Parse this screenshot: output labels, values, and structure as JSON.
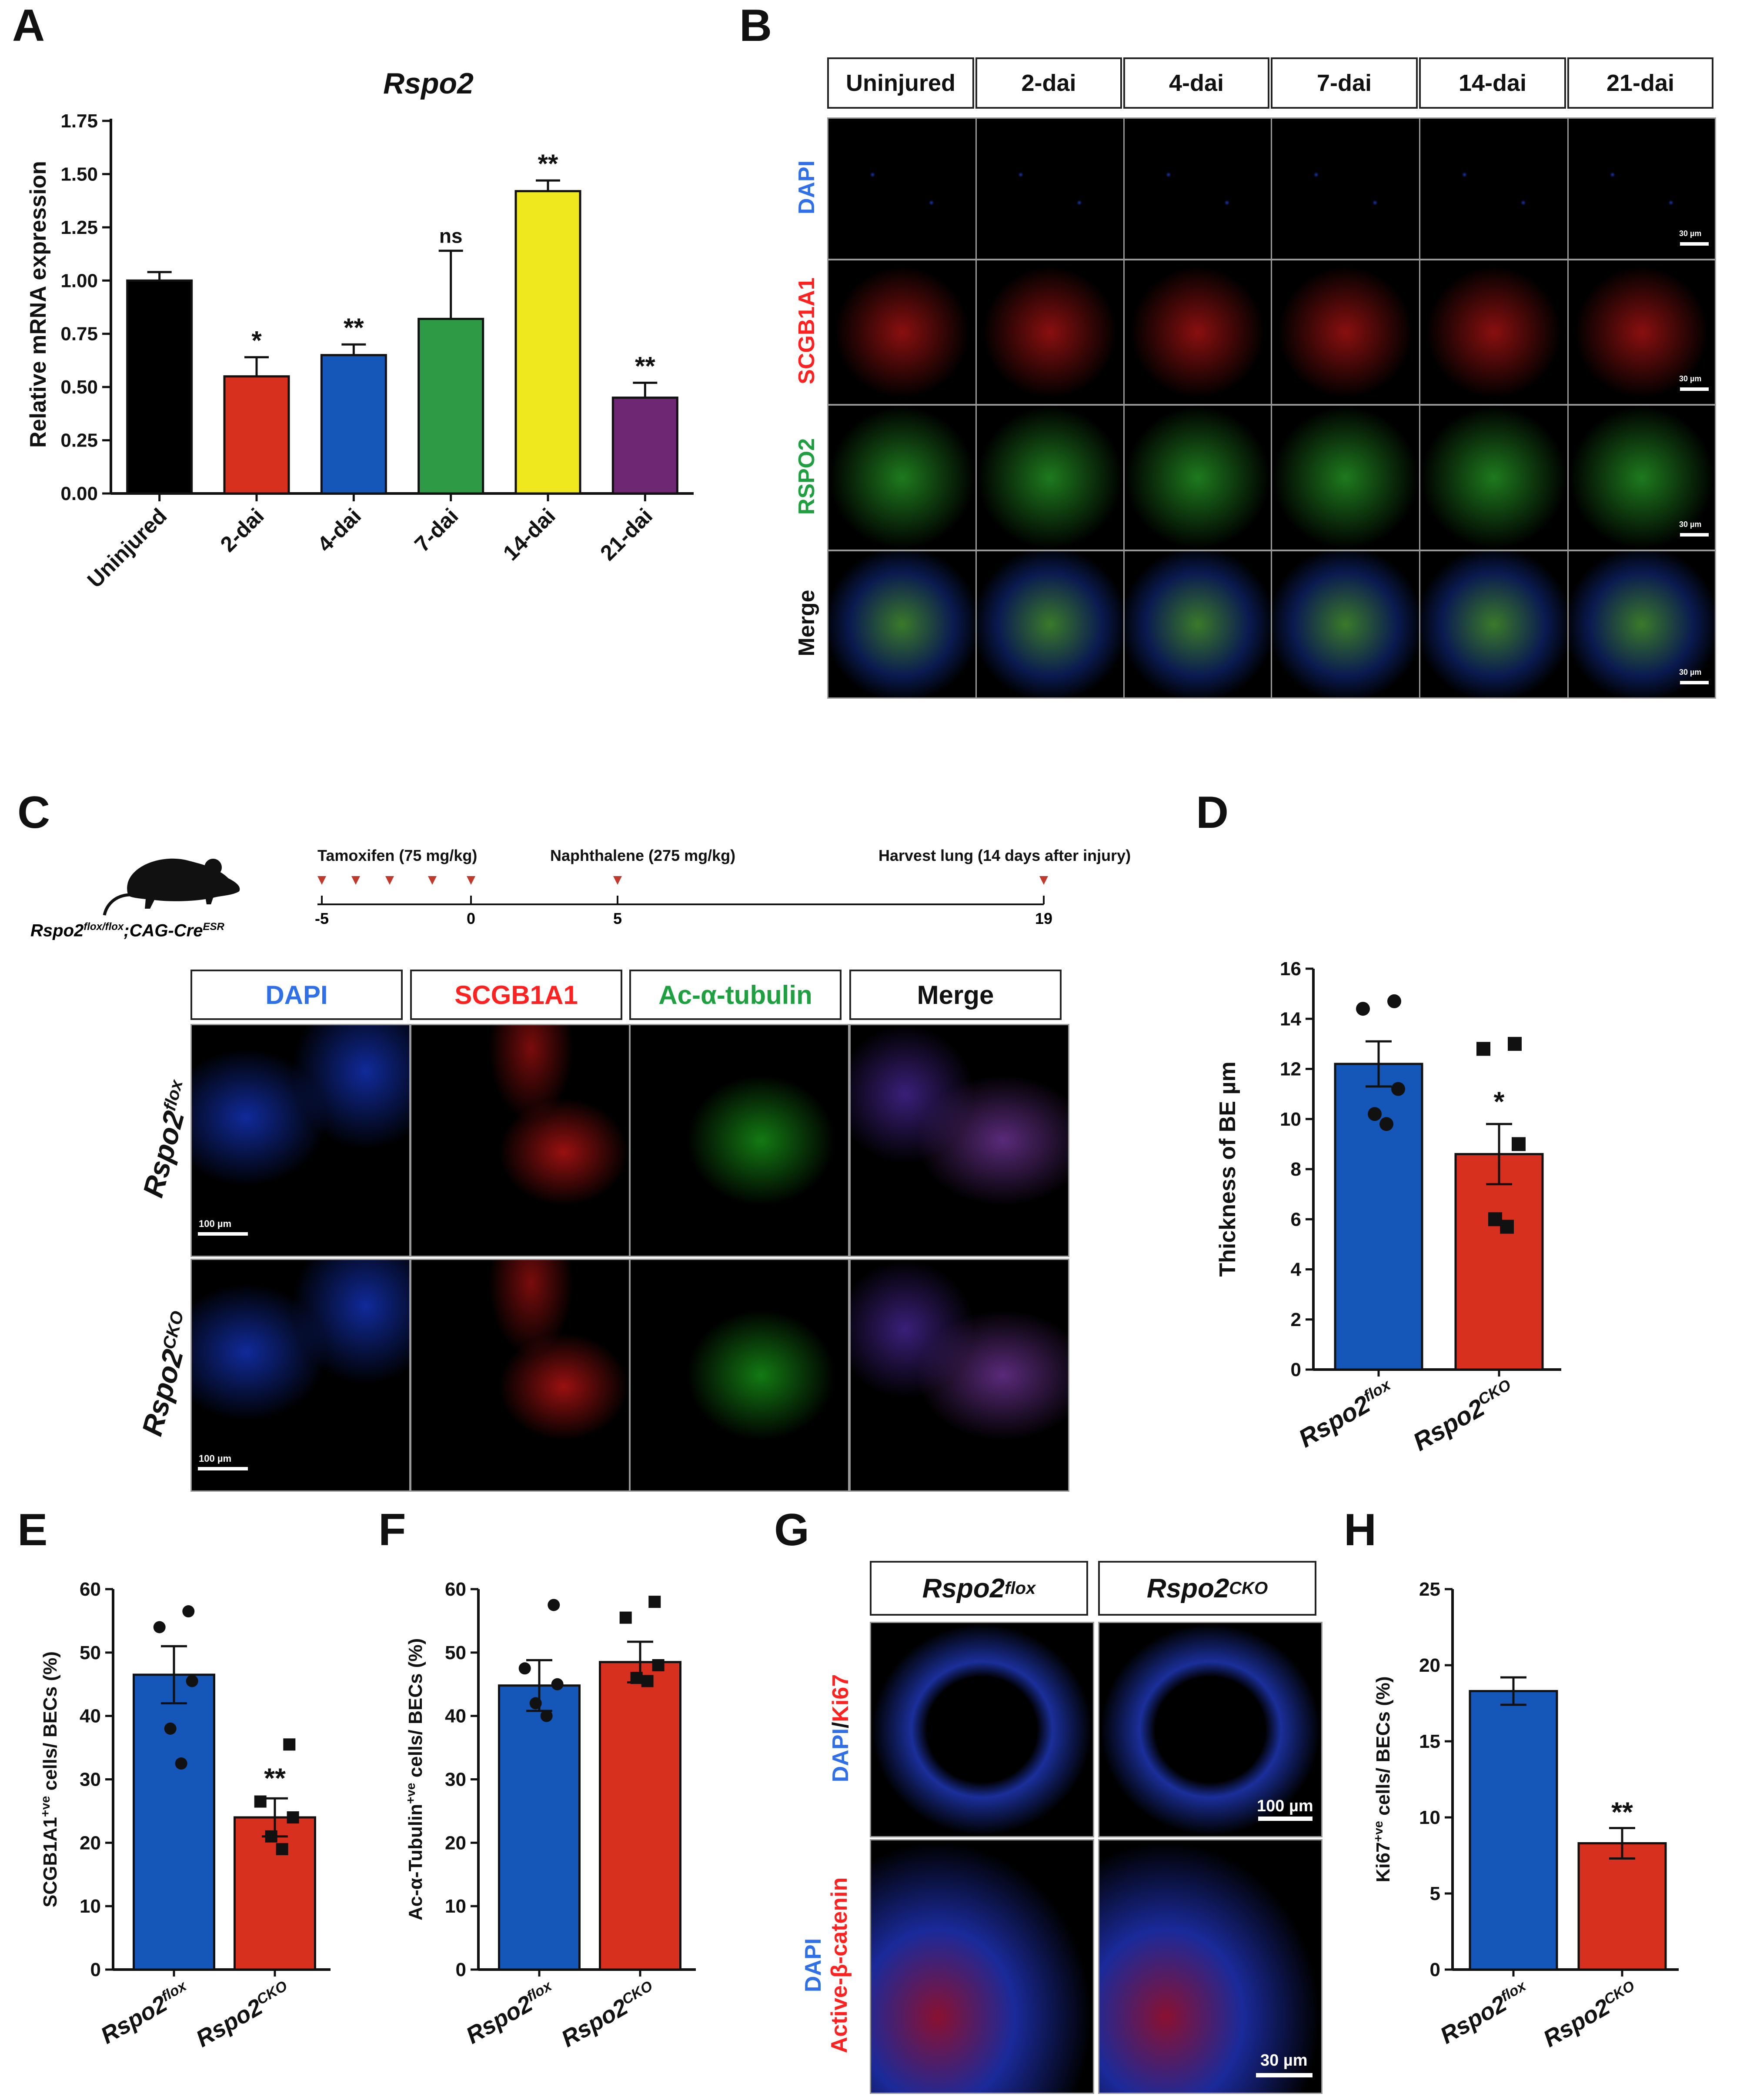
{
  "panels": {
    "A": "A",
    "B": "B",
    "C": "C",
    "D": "D",
    "E": "E",
    "F": "F",
    "G": "G",
    "H": "H"
  },
  "colors": {
    "black": "#000000",
    "red": "#d7301f",
    "blue": "#1457b8",
    "green": "#2f9a46",
    "yellow": "#f0e81f",
    "purple": "#6d2773",
    "dapi": "#2f6fe8",
    "scgb": "#ff2020",
    "green_label": "#1fa040",
    "tick": "#c0392b"
  },
  "panelA": {
    "chart_data": {
      "type": "bar",
      "title": "Rspo2",
      "ylabel": "Relative mRNA expression",
      "ylim": [
        0,
        1.75
      ],
      "yticks": [
        "0.00",
        "0.25",
        "0.50",
        "0.75",
        "1.00",
        "1.25",
        "1.50",
        "1.75"
      ],
      "categories": [
        "Uninjured",
        "2-dai",
        "4-dai",
        "7-dai",
        "14-dai",
        "21-dai"
      ],
      "values": [
        1.0,
        0.55,
        0.65,
        0.82,
        1.42,
        0.45
      ],
      "errors": [
        0.04,
        0.09,
        0.05,
        0.32,
        0.05,
        0.07
      ],
      "sig": [
        "",
        "*",
        "**",
        "ns",
        "**",
        "**"
      ],
      "colors": [
        "#000000",
        "#d7301f",
        "#1457b8",
        "#2f9a46",
        "#f0e81f",
        "#6d2773"
      ]
    }
  },
  "panelB": {
    "columns": [
      "Uninjured",
      "2-dai",
      "4-dai",
      "7-dai",
      "14-dai",
      "21-dai"
    ],
    "rows": [
      "DAPI",
      "SCGB1A1",
      "RSPO2",
      "Merge"
    ],
    "scale": "30 µm"
  },
  "panelC": {
    "genotype_prefix": "Rspo2",
    "genotype_sup1": "flox/flox",
    "genotype_mid": ";CAG-Cre",
    "genotype_sup2": "ESR",
    "events": [
      "Tamoxifen (75 mg/kg)",
      "Naphthalene (275 mg/kg)",
      "Harvest lung (14 days after injury)"
    ],
    "ticks": [
      "-5",
      "0",
      "5",
      "19"
    ],
    "columns": [
      "DAPI",
      "SCGB1A1",
      "Ac-α-tubulin",
      "Merge"
    ],
    "rows": [
      {
        "base": "Rspo2",
        "sup": "flox"
      },
      {
        "base": "Rspo2",
        "sup": "CKO"
      }
    ],
    "scale": "100 µm"
  },
  "panelD": {
    "chart_data": {
      "type": "bar",
      "ylabel": "Thickness of BE µm",
      "ylim": [
        0,
        16
      ],
      "yticks": [
        "0",
        "2",
        "4",
        "6",
        "8",
        "10",
        "12",
        "14",
        "16"
      ],
      "categories": [
        {
          "base": "Rspo2",
          "sup": "flox"
        },
        {
          "base": "Rspo2",
          "sup": "CKO"
        }
      ],
      "values": [
        12.2,
        8.6
      ],
      "errors": [
        0.9,
        1.2
      ],
      "points": [
        [
          14.7,
          14.4,
          11.2,
          10.2,
          9.8
        ],
        [
          13.0,
          12.8,
          9.0,
          6.0,
          5.7
        ]
      ],
      "sig": [
        "",
        "*"
      ]
    }
  },
  "panelE": {
    "chart_data": {
      "type": "bar",
      "ylabel_pre": "SCGB1A1",
      "ylabel_sup": "+ve",
      "ylabel_post": " cells/ BECs (%)",
      "ylim": [
        0,
        60
      ],
      "yticks": [
        "0",
        "10",
        "20",
        "30",
        "40",
        "50",
        "60"
      ],
      "categories": [
        {
          "base": "Rspo2",
          "sup": "flox"
        },
        {
          "base": "Rspo2",
          "sup": "CKO"
        }
      ],
      "values": [
        46.5,
        24.0
      ],
      "errors": [
        4.5,
        3.0
      ],
      "points": [
        [
          56.5,
          54.0,
          45.5,
          38.0,
          32.5
        ],
        [
          35.5,
          26.5,
          24.0,
          21.0,
          19.0
        ]
      ],
      "sig": [
        "",
        "**"
      ]
    }
  },
  "panelF": {
    "chart_data": {
      "type": "bar",
      "ylabel_pre": "Ac-α-Tubulin",
      "ylabel_sup": "+ve",
      "ylabel_post": " cells/ BECs (%)",
      "ylim": [
        0,
        60
      ],
      "yticks": [
        "0",
        "10",
        "20",
        "30",
        "40",
        "50",
        "60"
      ],
      "categories": [
        {
          "base": "Rspo2",
          "sup": "flox"
        },
        {
          "base": "Rspo2",
          "sup": "CKO"
        }
      ],
      "values": [
        44.8,
        48.5
      ],
      "errors": [
        4.0,
        3.2
      ],
      "points": [
        [
          57.5,
          47.5,
          45.0,
          42.0,
          40.0
        ],
        [
          58.0,
          55.5,
          48.0,
          46.0,
          45.5
        ]
      ],
      "sig": [
        "",
        ""
      ]
    }
  },
  "panelG": {
    "columns": [
      {
        "base": "Rspo2",
        "sup": "flox"
      },
      {
        "base": "Rspo2",
        "sup": "CKO"
      }
    ],
    "row1_a": "DAPI",
    "row1_sep": "/",
    "row1_b": "Ki67",
    "row2_a": "DAPI",
    "row2_b": "Active-β-catenin",
    "scale1": "100 µm",
    "scale2": "30 µm"
  },
  "panelH": {
    "chart_data": {
      "type": "bar",
      "ylabel_pre": "Ki67",
      "ylabel_sup": "+ve",
      "ylabel_post": " cells/ BECs (%)",
      "ylim": [
        0,
        25
      ],
      "yticks": [
        "0",
        "5",
        "10",
        "15",
        "20",
        "25"
      ],
      "categories": [
        {
          "base": "Rspo2",
          "sup": "flox"
        },
        {
          "base": "Rspo2",
          "sup": "CKO"
        }
      ],
      "values": [
        18.3,
        8.3
      ],
      "errors": [
        0.9,
        1.0
      ],
      "sig": [
        "",
        "**"
      ]
    }
  }
}
